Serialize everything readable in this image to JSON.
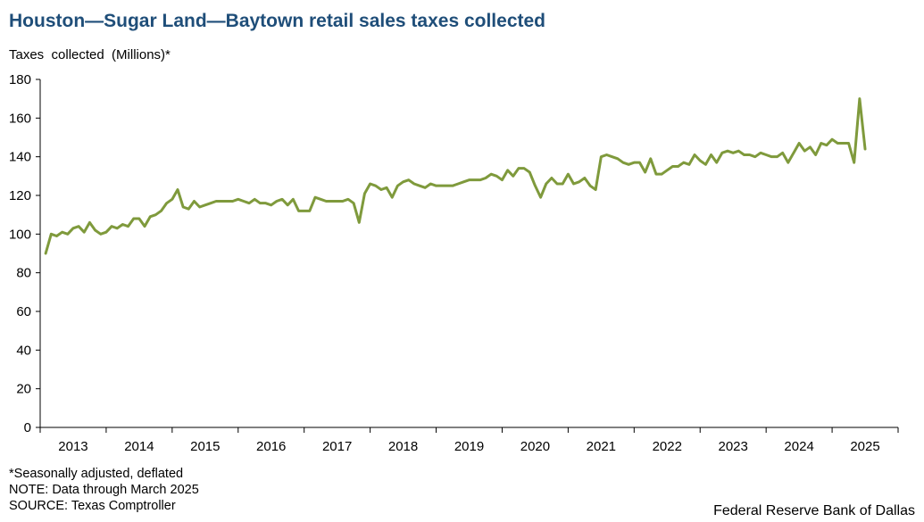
{
  "header": {
    "title": "Houston—Sugar Land—Baytown retail sales taxes collected",
    "ylabel": "Taxes  collected  (Millions)*"
  },
  "footer": {
    "notes": [
      "*Seasonally adjusted, deflated",
      "NOTE: Data through March 2025",
      "SOURCE: Texas Comptroller"
    ],
    "credit": "Federal Reserve Bank of Dallas"
  },
  "chart_data": {
    "type": "line",
    "ylim": [
      0,
      180
    ],
    "yticks": [
      0,
      20,
      40,
      60,
      80,
      100,
      120,
      140,
      160,
      180
    ],
    "xrange": [
      "2012-12",
      "2025-12"
    ],
    "xtick_labels": [
      "2013",
      "2014",
      "2015",
      "2016",
      "2017",
      "2018",
      "2019",
      "2020",
      "2021",
      "2022",
      "2023",
      "2024",
      "2025"
    ],
    "grid": false,
    "line_color": "#7f9a3c",
    "series": [
      {
        "x_start": "2013-01",
        "frequency": "monthly",
        "values": [
          90,
          100,
          99,
          101,
          100,
          103,
          104,
          101,
          106,
          102,
          100,
          101,
          104,
          103,
          105,
          104,
          108,
          108,
          104,
          109,
          110,
          112,
          116,
          118,
          123,
          114,
          113,
          117,
          114,
          115,
          116,
          117,
          117,
          117,
          117,
          118,
          117,
          116,
          118,
          116,
          116,
          115,
          117,
          118,
          115,
          118,
          112,
          112,
          112,
          119,
          118,
          117,
          117,
          117,
          117,
          118,
          116,
          106,
          121,
          126,
          125,
          123,
          124,
          119,
          125,
          127,
          128,
          126,
          125,
          124,
          126,
          125,
          125,
          125,
          125,
          126,
          127,
          128,
          128,
          128,
          129,
          131,
          130,
          128,
          133,
          130,
          134,
          134,
          132,
          125,
          119,
          126,
          129,
          126,
          126,
          131,
          126,
          127,
          129,
          125,
          123,
          140,
          141,
          140,
          139,
          137,
          136,
          137,
          137,
          132,
          139,
          131,
          131,
          133,
          135,
          135,
          137,
          136,
          141,
          138,
          136,
          141,
          137,
          142,
          143,
          142,
          143,
          141,
          141,
          140,
          142,
          141,
          140,
          140,
          142,
          137,
          142,
          147,
          143,
          145,
          141,
          147,
          146,
          149,
          147,
          147,
          147,
          137,
          170,
          144
        ]
      }
    ]
  }
}
